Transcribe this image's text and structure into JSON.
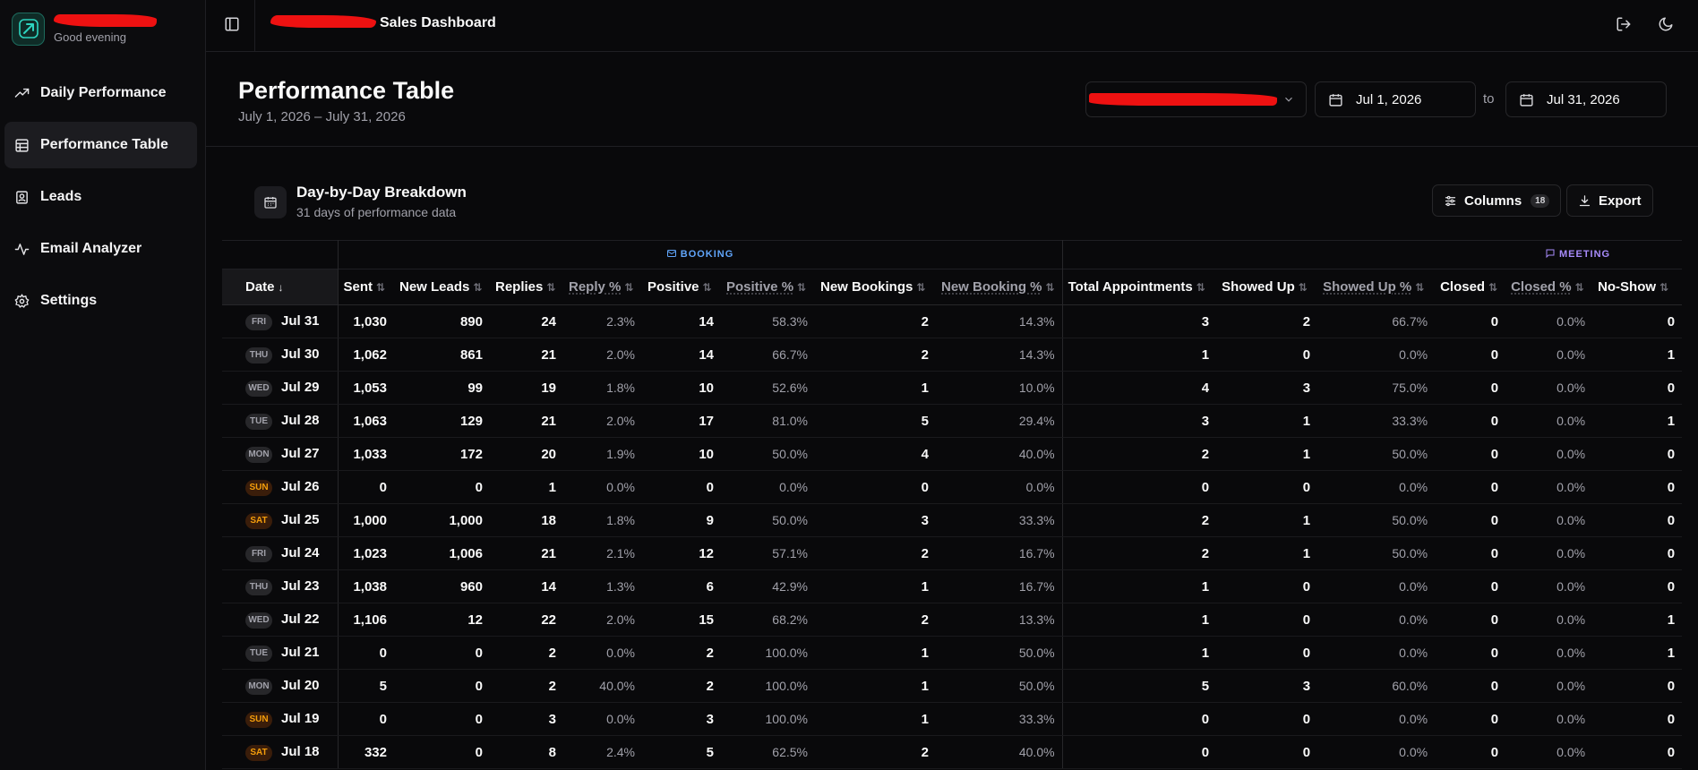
{
  "sidebar": {
    "brand_name": "",
    "greeting": "Good evening",
    "items": [
      {
        "label": "Daily Performance",
        "icon": "trending-up-icon"
      },
      {
        "label": "Performance Table",
        "icon": "table-icon",
        "active": true
      },
      {
        "label": "Leads",
        "icon": "contact-icon"
      },
      {
        "label": "Email Analyzer",
        "icon": "activity-icon"
      },
      {
        "label": "Settings",
        "icon": "gear-icon"
      }
    ]
  },
  "topbar": {
    "title": "Sales Dashboard"
  },
  "header": {
    "title": "Performance Table",
    "range": "July 1, 2026 – July 31, 2026",
    "start_date": "Jul 1, 2026",
    "to_label": "to",
    "end_date": "Jul 31, 2026"
  },
  "card": {
    "title": "Day-by-Day Breakdown",
    "subtitle": "31 days of performance data",
    "columns_label": "Columns",
    "columns_count": "18",
    "export_label": "Export"
  },
  "table": {
    "groups": {
      "booking": "BOOKING",
      "meeting": "MEETING"
    },
    "columns": [
      "Date",
      "Sent",
      "New Leads",
      "Replies",
      "Reply %",
      "Positive",
      "Positive %",
      "New Bookings",
      "New Booking %",
      "Total Appointments",
      "Showed Up",
      "Showed Up %",
      "Closed",
      "Closed %",
      "No-Show"
    ],
    "rows": [
      {
        "dow": "FRI",
        "date": "Jul 31",
        "v": [
          "1,030",
          "890",
          "24",
          "2.3%",
          "14",
          "58.3%",
          "2",
          "14.3%",
          "3",
          "2",
          "66.7%",
          "0",
          "0.0%",
          "0"
        ]
      },
      {
        "dow": "THU",
        "date": "Jul 30",
        "v": [
          "1,062",
          "861",
          "21",
          "2.0%",
          "14",
          "66.7%",
          "2",
          "14.3%",
          "1",
          "0",
          "0.0%",
          "0",
          "0.0%",
          "1"
        ]
      },
      {
        "dow": "WED",
        "date": "Jul 29",
        "v": [
          "1,053",
          "99",
          "19",
          "1.8%",
          "10",
          "52.6%",
          "1",
          "10.0%",
          "4",
          "3",
          "75.0%",
          "0",
          "0.0%",
          "0"
        ]
      },
      {
        "dow": "TUE",
        "date": "Jul 28",
        "v": [
          "1,063",
          "129",
          "21",
          "2.0%",
          "17",
          "81.0%",
          "5",
          "29.4%",
          "3",
          "1",
          "33.3%",
          "0",
          "0.0%",
          "1"
        ]
      },
      {
        "dow": "MON",
        "date": "Jul 27",
        "v": [
          "1,033",
          "172",
          "20",
          "1.9%",
          "10",
          "50.0%",
          "4",
          "40.0%",
          "2",
          "1",
          "50.0%",
          "0",
          "0.0%",
          "0"
        ]
      },
      {
        "dow": "SUN",
        "date": "Jul 26",
        "v": [
          "0",
          "0",
          "1",
          "0.0%",
          "0",
          "0.0%",
          "0",
          "0.0%",
          "0",
          "0",
          "0.0%",
          "0",
          "0.0%",
          "0"
        ]
      },
      {
        "dow": "SAT",
        "date": "Jul 25",
        "v": [
          "1,000",
          "1,000",
          "18",
          "1.8%",
          "9",
          "50.0%",
          "3",
          "33.3%",
          "2",
          "1",
          "50.0%",
          "0",
          "0.0%",
          "0"
        ]
      },
      {
        "dow": "FRI",
        "date": "Jul 24",
        "v": [
          "1,023",
          "1,006",
          "21",
          "2.1%",
          "12",
          "57.1%",
          "2",
          "16.7%",
          "2",
          "1",
          "50.0%",
          "0",
          "0.0%",
          "0"
        ]
      },
      {
        "dow": "THU",
        "date": "Jul 23",
        "v": [
          "1,038",
          "960",
          "14",
          "1.3%",
          "6",
          "42.9%",
          "1",
          "16.7%",
          "1",
          "0",
          "0.0%",
          "0",
          "0.0%",
          "0"
        ]
      },
      {
        "dow": "WED",
        "date": "Jul 22",
        "v": [
          "1,106",
          "12",
          "22",
          "2.0%",
          "15",
          "68.2%",
          "2",
          "13.3%",
          "1",
          "0",
          "0.0%",
          "0",
          "0.0%",
          "1"
        ]
      },
      {
        "dow": "TUE",
        "date": "Jul 21",
        "v": [
          "0",
          "0",
          "2",
          "0.0%",
          "2",
          "100.0%",
          "1",
          "50.0%",
          "1",
          "0",
          "0.0%",
          "0",
          "0.0%",
          "1"
        ]
      },
      {
        "dow": "MON",
        "date": "Jul 20",
        "v": [
          "5",
          "0",
          "2",
          "40.0%",
          "2",
          "100.0%",
          "1",
          "50.0%",
          "5",
          "3",
          "60.0%",
          "0",
          "0.0%",
          "0"
        ]
      },
      {
        "dow": "SUN",
        "date": "Jul 19",
        "v": [
          "0",
          "0",
          "3",
          "0.0%",
          "3",
          "100.0%",
          "1",
          "33.3%",
          "0",
          "0",
          "0.0%",
          "0",
          "0.0%",
          "0"
        ]
      },
      {
        "dow": "SAT",
        "date": "Jul 18",
        "v": [
          "332",
          "0",
          "8",
          "2.4%",
          "5",
          "62.5%",
          "2",
          "40.0%",
          "0",
          "0",
          "0.0%",
          "0",
          "0.0%",
          "0"
        ]
      }
    ]
  }
}
